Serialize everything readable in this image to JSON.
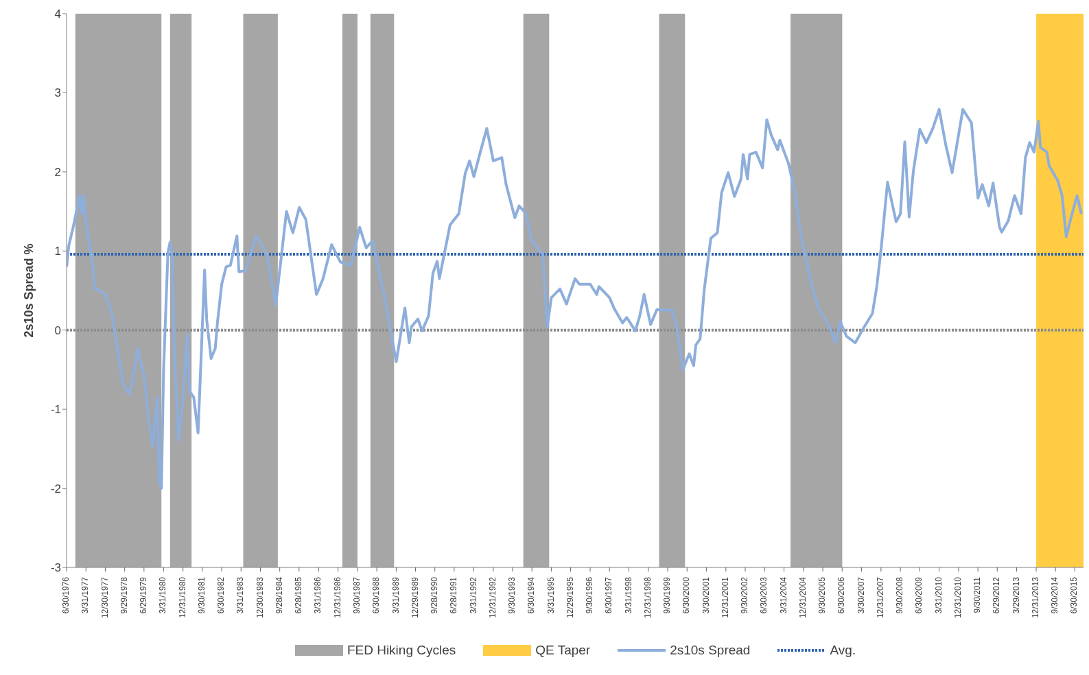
{
  "chart_data": {
    "type": "line",
    "ylabel": "2s10s Spread %",
    "xlim": [
      "1976-06-30",
      "2015-10-31"
    ],
    "ylim": [
      -3,
      4
    ],
    "yticks": [
      -3,
      -2,
      -1,
      0,
      1,
      2,
      3,
      4
    ],
    "xticks": [
      {
        "value": "1976-06-30",
        "label": "6/30/1976"
      },
      {
        "value": "1977-03-31",
        "label": "3/31/1977"
      },
      {
        "value": "1977-12-30",
        "label": "12/30/1977"
      },
      {
        "value": "1978-09-29",
        "label": "9/29/1978"
      },
      {
        "value": "1979-06-29",
        "label": "6/29/1979"
      },
      {
        "value": "1980-03-31",
        "label": "3/31/1980"
      },
      {
        "value": "1980-12-31",
        "label": "12/31/1980"
      },
      {
        "value": "1981-09-30",
        "label": "9/30/1981"
      },
      {
        "value": "1982-06-30",
        "label": "6/30/1982"
      },
      {
        "value": "1983-03-31",
        "label": "3/31/1983"
      },
      {
        "value": "1983-12-30",
        "label": "12/30/1983"
      },
      {
        "value": "1984-09-28",
        "label": "9/28/1984"
      },
      {
        "value": "1985-06-28",
        "label": "6/28/1985"
      },
      {
        "value": "1986-03-31",
        "label": "3/31/1986"
      },
      {
        "value": "1986-12-31",
        "label": "12/31/1986"
      },
      {
        "value": "1987-09-30",
        "label": "9/30/1987"
      },
      {
        "value": "1988-06-30",
        "label": "6/30/1988"
      },
      {
        "value": "1989-03-31",
        "label": "3/31/1989"
      },
      {
        "value": "1989-12-29",
        "label": "12/29/1989"
      },
      {
        "value": "1990-09-28",
        "label": "9/28/1990"
      },
      {
        "value": "1991-06-28",
        "label": "6/28/1991"
      },
      {
        "value": "1992-03-31",
        "label": "3/31/1992"
      },
      {
        "value": "1992-12-31",
        "label": "12/31/1992"
      },
      {
        "value": "1993-09-30",
        "label": "9/30/1993"
      },
      {
        "value": "1994-06-30",
        "label": "6/30/1994"
      },
      {
        "value": "1995-03-31",
        "label": "3/31/1995"
      },
      {
        "value": "1995-12-29",
        "label": "12/29/1995"
      },
      {
        "value": "1996-09-30",
        "label": "9/30/1996"
      },
      {
        "value": "1997-06-30",
        "label": "6/30/1997"
      },
      {
        "value": "1998-03-31",
        "label": "3/31/1998"
      },
      {
        "value": "1998-12-31",
        "label": "12/31/1998"
      },
      {
        "value": "1999-09-30",
        "label": "9/30/1999"
      },
      {
        "value": "2000-06-30",
        "label": "6/30/2000"
      },
      {
        "value": "2001-03-30",
        "label": "3/30/2001"
      },
      {
        "value": "2001-12-31",
        "label": "12/31/2001"
      },
      {
        "value": "2002-09-30",
        "label": "9/30/2002"
      },
      {
        "value": "2003-06-30",
        "label": "6/30/2003"
      },
      {
        "value": "2004-03-31",
        "label": "3/31/2004"
      },
      {
        "value": "2004-12-31",
        "label": "12/31/2004"
      },
      {
        "value": "2005-09-30",
        "label": "9/30/2005"
      },
      {
        "value": "2006-06-30",
        "label": "6/30/2006"
      },
      {
        "value": "2007-03-30",
        "label": "3/30/2007"
      },
      {
        "value": "2007-12-31",
        "label": "12/31/2007"
      },
      {
        "value": "2008-09-30",
        "label": "9/30/2008"
      },
      {
        "value": "2009-06-30",
        "label": "6/30/2009"
      },
      {
        "value": "2010-03-31",
        "label": "3/31/2010"
      },
      {
        "value": "2010-12-31",
        "label": "12/31/2010"
      },
      {
        "value": "2011-09-30",
        "label": "9/30/2011"
      },
      {
        "value": "2012-06-29",
        "label": "6/29/2012"
      },
      {
        "value": "2013-03-29",
        "label": "3/29/2013"
      },
      {
        "value": "2013-12-31",
        "label": "12/31/2013"
      },
      {
        "value": "2014-09-30",
        "label": "9/30/2014"
      },
      {
        "value": "2015-06-30",
        "label": "6/30/2015"
      }
    ],
    "bands": [
      {
        "axis": "x",
        "from": "1976-11",
        "to": "1980-03",
        "label": "FED Hiking Cycles",
        "color": "#a6a6a6"
      },
      {
        "axis": "x",
        "from": "1980-07",
        "to": "1981-05",
        "color": "#a6a6a6"
      },
      {
        "axis": "x",
        "from": "1983-05",
        "to": "1984-09",
        "color": "#a6a6a6"
      },
      {
        "axis": "x",
        "from": "1987-03",
        "to": "1987-10",
        "color": "#a6a6a6"
      },
      {
        "axis": "x",
        "from": "1988-04",
        "to": "1989-03",
        "color": "#a6a6a6"
      },
      {
        "axis": "x",
        "from": "1994-03",
        "to": "1995-03",
        "color": "#a6a6a6"
      },
      {
        "axis": "x",
        "from": "1999-06",
        "to": "2000-06",
        "color": "#a6a6a6"
      },
      {
        "axis": "x",
        "from": "2004-07",
        "to": "2006-07",
        "color": "#a6a6a6"
      },
      {
        "axis": "x",
        "from": "2014-01",
        "to": "2015-10-31",
        "label": "QE Taper",
        "color": "#ffcc44"
      }
    ],
    "ref_lines": [
      {
        "axis": "y",
        "value": 0,
        "color": "#8c8c8c",
        "line_style": "dotted"
      },
      {
        "axis": "y",
        "value": 0.96,
        "label": "Avg.",
        "color": "#2e63b0",
        "line_style": "dotted"
      }
    ],
    "marker": "none",
    "line_style": "solid",
    "legend": "bottom",
    "series": [
      {
        "name": "2s10s Spread",
        "color": "#8eaedb",
        "x": [
          "1976-07",
          "1976-08",
          "1976-10",
          "1976-12",
          "1977-01",
          "1977-02",
          "1977-03",
          "1977-04",
          "1977-07",
          "1977-08",
          "1977-11",
          "1978-01",
          "1978-04",
          "1978-06",
          "1978-09",
          "1978-12",
          "1979-02",
          "1979-04",
          "1979-07",
          "1979-09",
          "1979-11",
          "1980-01",
          "1980-02",
          "1980-03",
          "1980-04",
          "1980-06",
          "1980-07",
          "1980-08",
          "1980-09",
          "1980-11",
          "1981-01",
          "1981-03",
          "1981-04",
          "1981-06",
          "1981-08",
          "1981-11",
          "1981-12",
          "1982-02",
          "1982-04",
          "1982-05",
          "1982-07",
          "1982-09",
          "1982-11",
          "1983-02",
          "1983-03",
          "1983-06",
          "1983-11",
          "1984-04",
          "1984-08",
          "1985-01",
          "1985-04",
          "1985-07",
          "1985-10",
          "1986-03",
          "1986-06",
          "1986-10",
          "1987-02",
          "1987-07",
          "1987-11",
          "1988-02",
          "1988-05",
          "1988-10",
          "1989-04",
          "1989-08",
          "1989-10",
          "1989-11",
          "1990-02",
          "1990-04",
          "1990-07",
          "1990-09",
          "1990-11",
          "1990-12",
          "1991-05",
          "1991-09",
          "1991-12",
          "1992-02",
          "1992-04",
          "1992-07",
          "1992-10",
          "1993-01",
          "1993-05",
          "1993-07",
          "1993-11",
          "1994-01",
          "1994-04",
          "1994-07",
          "1994-12",
          "1995-02",
          "1995-04",
          "1995-08",
          "1995-11",
          "1996-03",
          "1996-05",
          "1996-10",
          "1997-01",
          "1997-02",
          "1997-07",
          "1997-09",
          "1998-01",
          "1998-03",
          "1998-07",
          "1998-09",
          "1998-11",
          "1999-02",
          "1999-05",
          "1999-12",
          "2000-02",
          "2000-05",
          "2000-08",
          "2000-10",
          "2000-11",
          "2001-01",
          "2001-03",
          "2001-06",
          "2001-09",
          "2001-11",
          "2002-02",
          "2002-05",
          "2002-08",
          "2002-09",
          "2002-11",
          "2002-12",
          "2003-03",
          "2003-06",
          "2003-08",
          "2003-10",
          "2004-01",
          "2004-02",
          "2004-06",
          "2004-09",
          "2004-12",
          "2005-05",
          "2005-08",
          "2006-01",
          "2006-04",
          "2006-06",
          "2006-09",
          "2007-01",
          "2007-05",
          "2007-09",
          "2007-11",
          "2008-01",
          "2008-04",
          "2008-08",
          "2008-10",
          "2008-12",
          "2009-02",
          "2009-04",
          "2009-07",
          "2009-10",
          "2010-01",
          "2010-04",
          "2010-07",
          "2010-10",
          "2010-12",
          "2011-03",
          "2011-07",
          "2011-10",
          "2011-12",
          "2012-03",
          "2012-05",
          "2012-08",
          "2012-09",
          "2012-12",
          "2013-03",
          "2013-06",
          "2013-08",
          "2013-10",
          "2013-12",
          "2014-02",
          "2014-03",
          "2014-06",
          "2014-07",
          "2014-11",
          "2015-01",
          "2015-03",
          "2015-05",
          "2015-08",
          "2015-10"
        ],
        "values": [
          0.8,
          1.07,
          1.3,
          1.56,
          1.7,
          1.47,
          1.7,
          1.38,
          0.85,
          0.53,
          0.49,
          0.44,
          0.22,
          -0.14,
          -0.67,
          -0.81,
          -0.58,
          -0.23,
          -0.58,
          -1.12,
          -1.48,
          -0.85,
          -1.92,
          -2.0,
          -0.5,
          0.98,
          1.11,
          0.93,
          -0.32,
          -1.39,
          -0.85,
          -0.05,
          -0.77,
          -0.85,
          -1.3,
          0.76,
          0.13,
          -0.36,
          -0.23,
          0.09,
          0.58,
          0.8,
          0.82,
          1.19,
          0.74,
          0.75,
          1.19,
          0.96,
          0.31,
          1.5,
          1.23,
          1.55,
          1.4,
          0.45,
          0.65,
          1.08,
          0.86,
          0.82,
          1.3,
          1.04,
          1.13,
          0.49,
          -0.4,
          0.28,
          -0.16,
          0.04,
          0.14,
          -0.01,
          0.18,
          0.72,
          0.87,
          0.65,
          1.33,
          1.47,
          1.98,
          2.14,
          1.94,
          2.25,
          2.55,
          2.14,
          2.18,
          1.84,
          1.42,
          1.57,
          1.48,
          1.13,
          0.96,
          0.04,
          0.41,
          0.52,
          0.33,
          0.65,
          0.58,
          0.58,
          0.45,
          0.55,
          0.41,
          0.28,
          0.09,
          0.16,
          -0.01,
          0.18,
          0.45,
          0.07,
          0.26,
          0.25,
          0.07,
          -0.5,
          -0.3,
          -0.45,
          -0.19,
          -0.11,
          0.52,
          1.16,
          1.23,
          1.74,
          1.99,
          1.69,
          1.91,
          2.22,
          1.91,
          2.22,
          2.25,
          2.05,
          2.66,
          2.47,
          2.28,
          2.4,
          2.11,
          1.74,
          1.16,
          0.55,
          0.28,
          0.04,
          -0.16,
          0.11,
          -0.08,
          -0.16,
          0.03,
          0.21,
          0.55,
          1.02,
          1.87,
          1.37,
          1.47,
          2.38,
          1.43,
          2.01,
          2.54,
          2.37,
          2.55,
          2.79,
          2.35,
          1.99,
          2.31,
          2.79,
          2.62,
          1.67,
          1.84,
          1.57,
          1.86,
          1.3,
          1.24,
          1.38,
          1.7,
          1.47,
          2.18,
          2.37,
          2.25,
          2.64,
          2.31,
          2.25,
          2.08,
          1.89,
          1.7,
          1.18,
          1.4,
          1.7,
          1.47
        ]
      }
    ]
  }
}
